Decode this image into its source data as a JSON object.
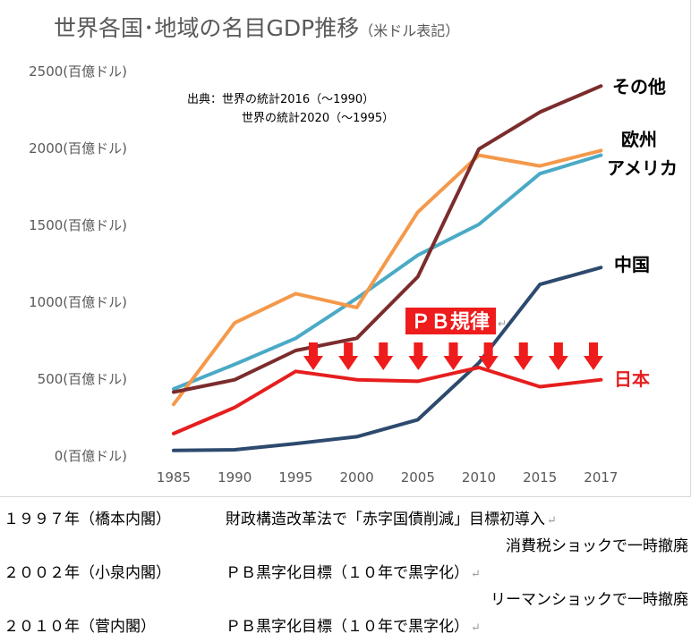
{
  "chart_data": {
    "type": "line",
    "title": "世界各国･地域の名目GDP推移",
    "title_note": "（米ドル表記）",
    "source_lines": [
      "出典：世界の統計2016（～1990）",
      "世界の統計2020（～1995）"
    ],
    "x": [
      "1985",
      "1990",
      "1995",
      "2000",
      "2005",
      "2010",
      "2015",
      "2017"
    ],
    "ytick_labels": [
      "0(百億ドル)",
      "500(百億ドル)",
      "1000(百億ドル)",
      "1500(百億ドル)",
      "2000(百億ドル)",
      "2500(百億ドル)"
    ],
    "ylim": [
      0,
      2500
    ],
    "yticks": [
      0,
      500,
      1000,
      1500,
      2000,
      2500
    ],
    "legend_placement": "right end of each line",
    "series": [
      {
        "name": "その他",
        "color": "#7b2c2c",
        "values": [
          410,
          490,
          680,
          760,
          1160,
          1990,
          2230,
          2400
        ]
      },
      {
        "name": "欧州",
        "color": "#f4994b",
        "values": [
          330,
          860,
          1050,
          960,
          1580,
          1950,
          1880,
          1980
        ]
      },
      {
        "name": "アメリカ",
        "color": "#4aaac6",
        "values": [
          430,
          590,
          760,
          1020,
          1300,
          1500,
          1830,
          1950
        ]
      },
      {
        "name": "中国",
        "color": "#2d4a6e",
        "values": [
          30,
          35,
          75,
          120,
          230,
          600,
          1110,
          1220
        ]
      },
      {
        "name": "日本",
        "color": "#e61e1e",
        "values": [
          140,
          310,
          545,
          490,
          480,
          570,
          445,
          490
        ]
      }
    ],
    "annotation": {
      "label": "ＰＢ規律",
      "arrow_count": 9,
      "arrow_color": "#ee1c1c"
    }
  },
  "notes": [
    {
      "year": "１９９７年（橋本内閣）",
      "text": "財政構造改革法で「赤字国債削減」目標初導入"
    },
    {
      "right": "消費税ショックで一時撤廃"
    },
    {
      "year": "２００２年（小泉内閣）",
      "text": "ＰＢ黒字化目標（１０年で黒字化）"
    },
    {
      "right": "リーマンショックで一時撤廃"
    },
    {
      "year": "２０１０年（菅内閣）",
      "text": "ＰＢ黒字化目標（１０年で黒字化）"
    }
  ],
  "return_mark": "↵"
}
